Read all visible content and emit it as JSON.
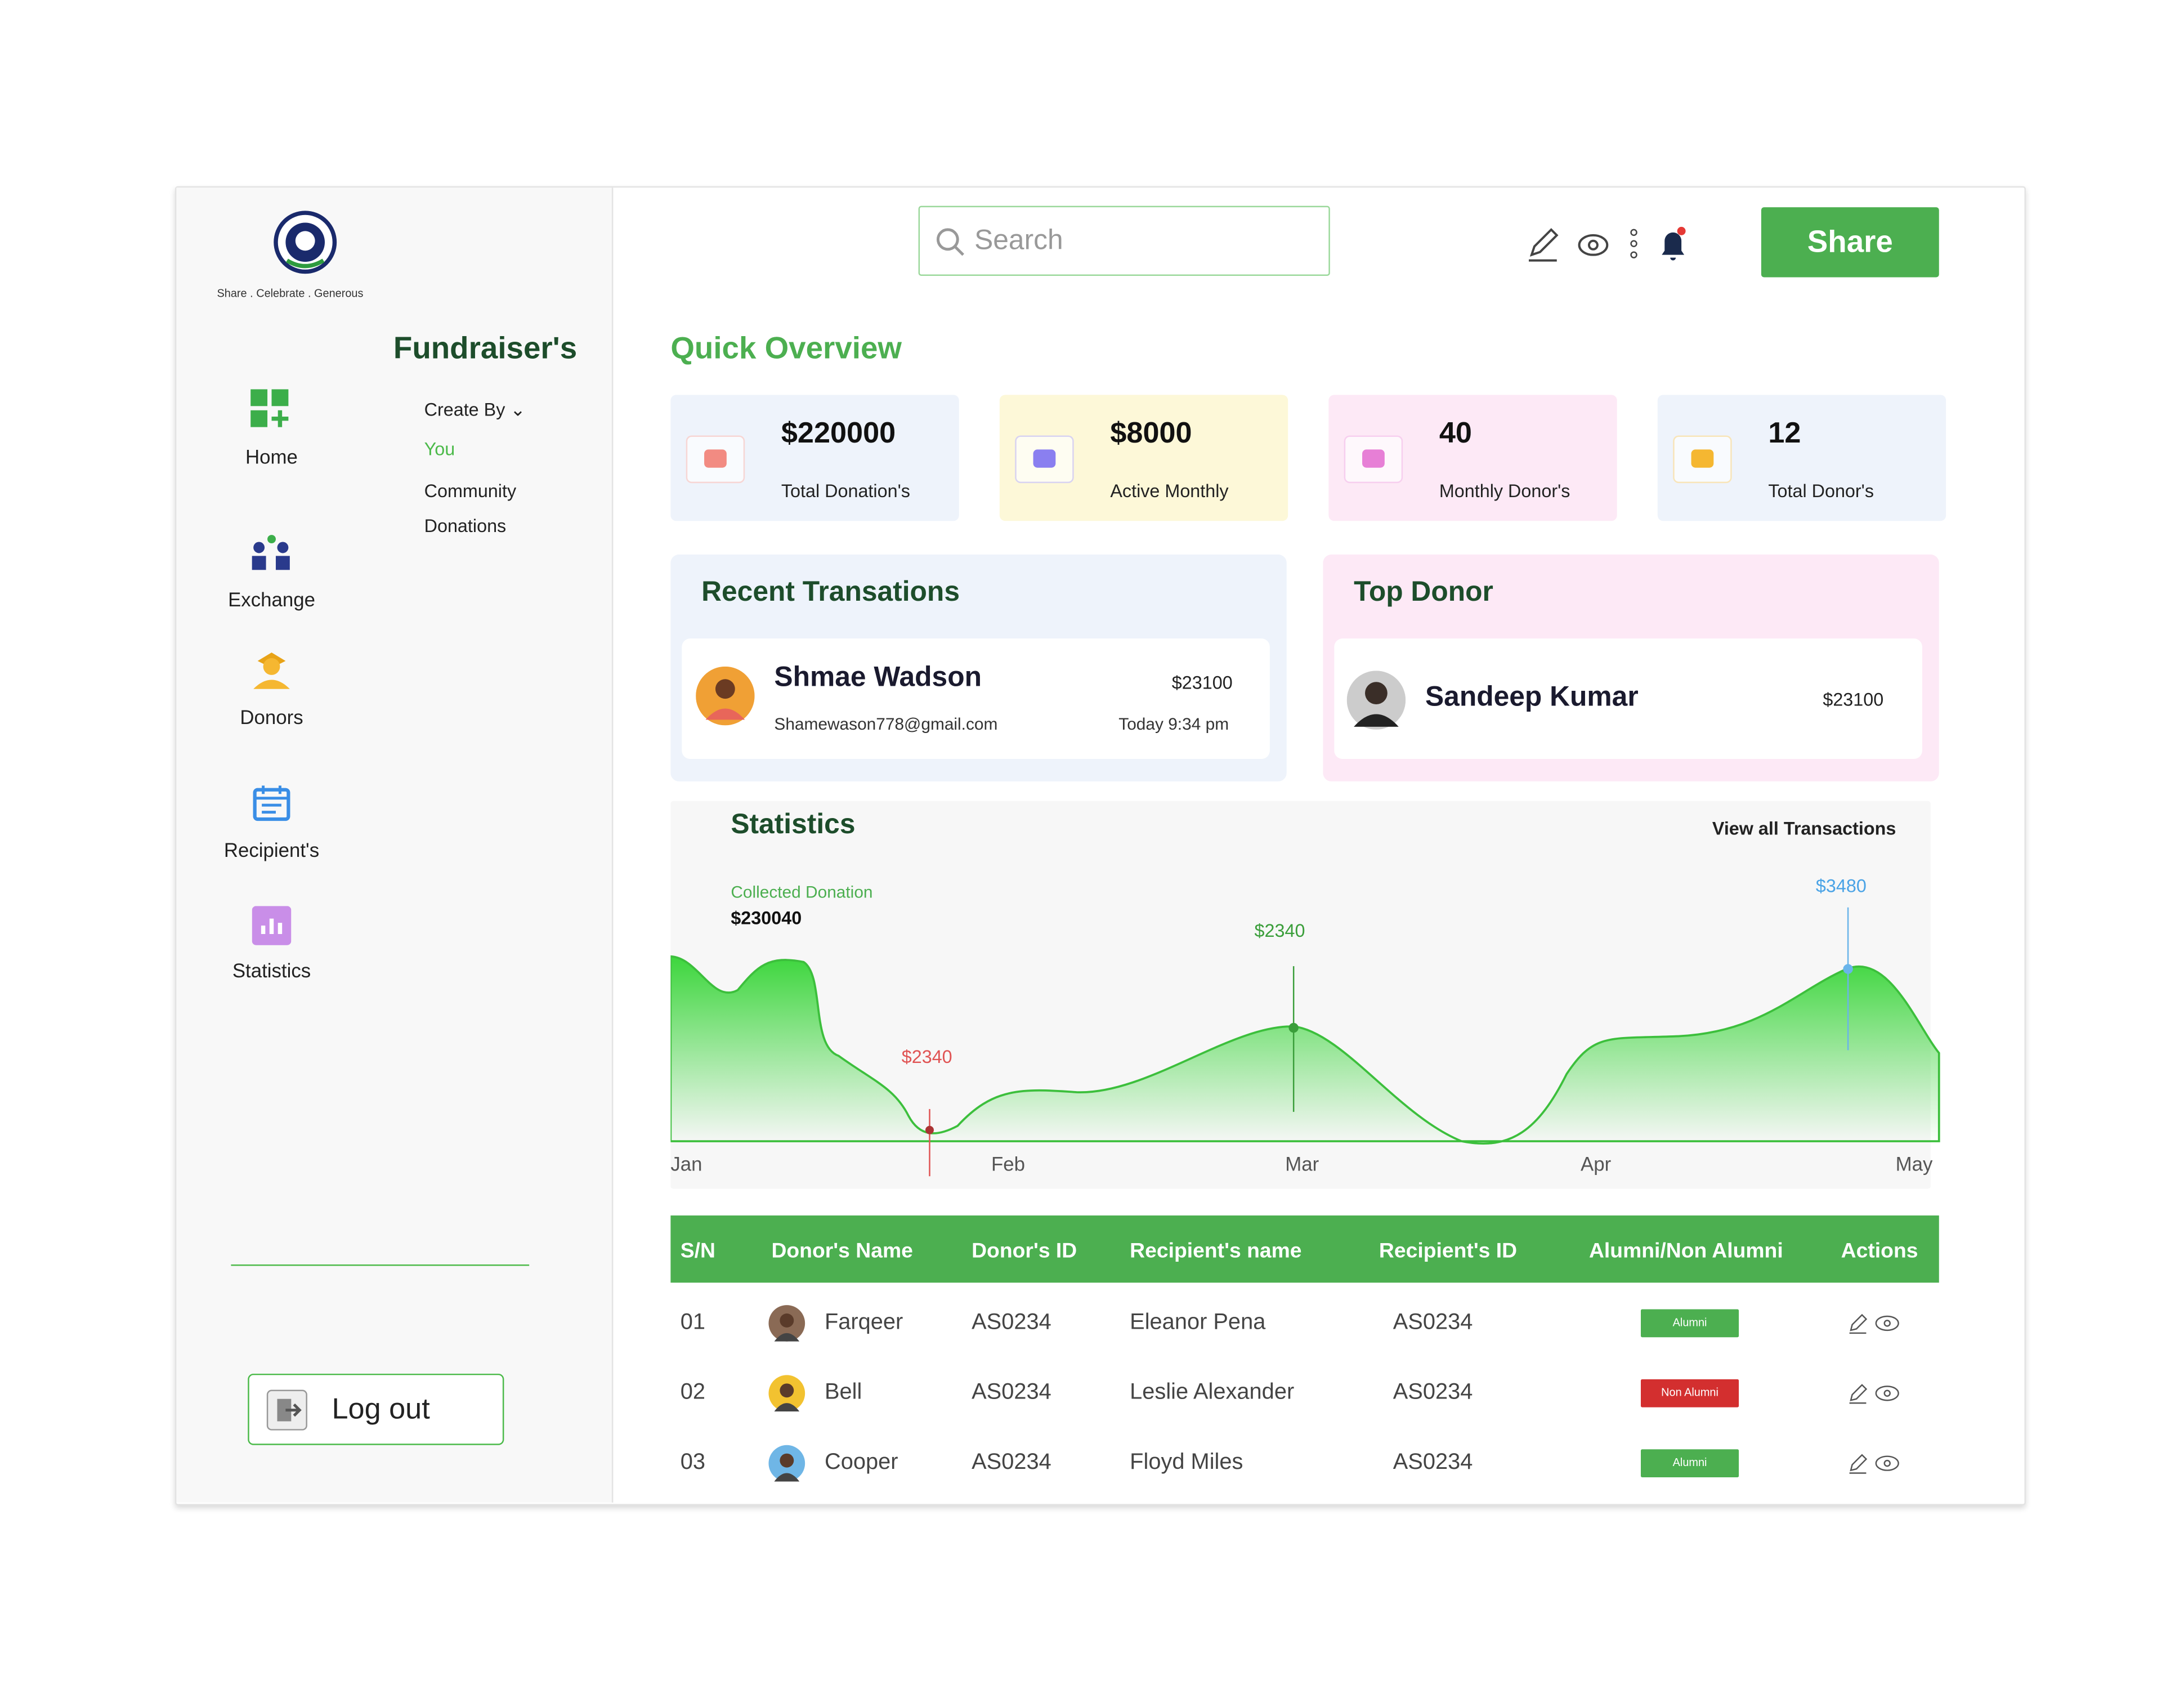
{
  "sidebar": {
    "tagline": "Share . Celebrate . Generous",
    "title": "Fundraiser's",
    "nav": [
      "Home",
      "Exchange",
      "Donors",
      "Recipient's",
      "Statistics"
    ],
    "filter": {
      "label": "Create By",
      "options": [
        "You",
        "Community Donations"
      ]
    },
    "logout": "Log out"
  },
  "header": {
    "search": "Search",
    "share": "Share"
  },
  "overview": {
    "title": "Quick Overview",
    "cards": [
      {
        "value": "$220000",
        "label": "Total Donation's"
      },
      {
        "value": "$8000",
        "label": "Active Monthly"
      },
      {
        "value": "40",
        "label": "Monthly Donor's"
      },
      {
        "value": "12",
        "label": "Total Donor's"
      }
    ]
  },
  "recent": {
    "title": "Recent Transations",
    "name": "Shmae Wadson",
    "email": "Shamewason778@gmail.com",
    "amount": "$23100",
    "time": "Today 9:34 pm"
  },
  "top_donor": {
    "title": "Top Donor",
    "name": "Sandeep Kumar",
    "amount": "$23100"
  },
  "statistics": {
    "title": "Statistics",
    "link": "View all Transactions",
    "label": "Collected Donation",
    "total": "$230040",
    "annotations": [
      "$2340",
      "$2340",
      "$3480"
    ],
    "months": [
      "Jan",
      "Feb",
      "Mar",
      "Apr",
      "May"
    ]
  },
  "table": {
    "headers": [
      "S/N",
      "Donor's Name",
      "Donor's ID",
      "Recipient's name",
      "Recipient's ID",
      "Alumni/Non Alumni",
      "Actions"
    ],
    "rows": [
      [
        "01",
        "Farqeer",
        "AS0234",
        "Eleanor Pena",
        "AS0234",
        "Alumni"
      ],
      [
        "02",
        "Bell",
        "AS0234",
        "Leslie Alexander",
        "AS0234",
        "Non Alumni"
      ],
      [
        "03",
        "Cooper",
        "AS0234",
        "Floyd Miles",
        "AS0234",
        "Alumni"
      ]
    ]
  }
}
